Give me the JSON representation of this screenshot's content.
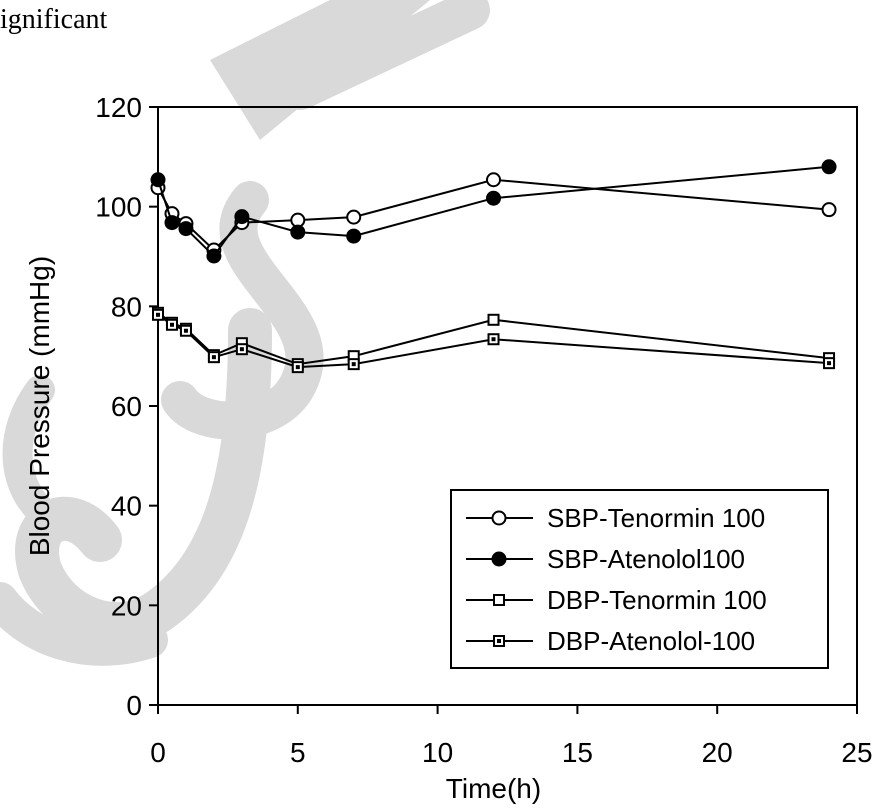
{
  "page": {
    "top_text": "ignificant"
  },
  "chart_data": {
    "type": "line",
    "title": "",
    "xlabel": "Time(h)",
    "ylabel": "Blood Pressure (mmHg)",
    "xlim": [
      0,
      25
    ],
    "ylim": [
      0,
      120
    ],
    "xticks": [
      0,
      5,
      10,
      15,
      20,
      25
    ],
    "yticks": [
      0,
      20,
      40,
      60,
      80,
      100,
      120
    ],
    "grid": false,
    "legend_position": "bottom-right",
    "series": [
      {
        "name": "SBP-Tenormin 100",
        "marker": "circle-open",
        "color": "#000000",
        "x": [
          0,
          0.5,
          1,
          2,
          3,
          5,
          7,
          12,
          24
        ],
        "values": [
          103.8,
          98.6,
          96.6,
          91.3,
          96.8,
          97.3,
          97.9,
          105.4,
          99.4
        ]
      },
      {
        "name": "SBP-Atenolol100",
        "marker": "circle-filled",
        "color": "#000000",
        "x": [
          0,
          0.5,
          1,
          2,
          3,
          5,
          7,
          12,
          24
        ],
        "values": [
          105.4,
          96.8,
          95.6,
          90.1,
          98.0,
          94.9,
          94.1,
          101.7,
          108.0
        ]
      },
      {
        "name": "DBP-Tenormin 100",
        "marker": "square-open",
        "color": "#000000",
        "x": [
          0,
          0.5,
          1,
          2,
          3,
          5,
          7,
          12,
          24
        ],
        "values": [
          78.7,
          76.7,
          75.5,
          70.2,
          72.6,
          68.4,
          70.0,
          77.3,
          69.6
        ]
      },
      {
        "name": "DBP-Atenolol-100",
        "marker": "square-dotted",
        "color": "#000000",
        "x": [
          0,
          0.5,
          1,
          2,
          3,
          5,
          7,
          12,
          24
        ],
        "values": [
          78.3,
          76.3,
          75.1,
          69.8,
          71.4,
          67.8,
          68.4,
          73.4,
          68.6
        ]
      }
    ]
  }
}
